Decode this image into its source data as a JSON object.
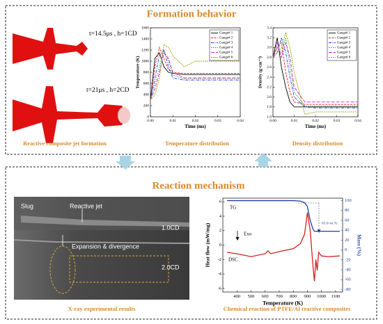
{
  "formation": {
    "title": "Formation behavior",
    "jet_labels": [
      "t=14.5μs , h=1CD",
      "t=21μs , h=2CD"
    ],
    "captions": [
      "Reactive composite jet formation",
      "Temperature distribution",
      "Density distribution"
    ],
    "charts": [
      {
        "type": "line",
        "y_label": "Temperature (K)",
        "x_label": "Time (ms)",
        "x": [
          0,
          0.002,
          0.004,
          0.006,
          0.008,
          0.01,
          0.015,
          0.02,
          0.03,
          0.04
        ],
        "xlim": [
          0,
          0.04
        ],
        "xticks": [
          {
            "value": 0,
            "label": "0.00"
          },
          {
            "value": 0.01,
            "label": "0.01"
          },
          {
            "value": 0.02,
            "label": "0.02"
          },
          {
            "value": 0.03,
            "label": "0.03"
          },
          {
            "value": 0.04,
            "label": "0.04"
          }
        ],
        "ylim": [
          0,
          1600
        ],
        "yticks": [
          0,
          200,
          400,
          600,
          800,
          1000,
          1200,
          1400,
          1600
        ],
        "legend": "upper right",
        "series": [
          {
            "name": "Gauge# 1",
            "color": "#000000",
            "values": [
              300,
              1050,
              1150,
              900,
              800,
              780,
              760,
              760,
              760,
              760
            ]
          },
          {
            "name": "Gauge# 2",
            "color": "#e02020",
            "values": [
              300,
              900,
              1250,
              1050,
              850,
              800,
              780,
              780,
              780,
              780
            ]
          },
          {
            "name": "Gauge# 3",
            "color": "#2030e0",
            "values": [
              300,
              700,
              1100,
              1200,
              900,
              700,
              660,
              660,
              660,
              660
            ]
          },
          {
            "name": "Gauge# 4",
            "color": "#20a040",
            "values": [
              300,
              600,
              900,
              1200,
              1000,
              750,
              680,
              680,
              680,
              680
            ]
          },
          {
            "name": "Gauge# 5",
            "color": "#d020d0",
            "values": [
              300,
              500,
              800,
              1150,
              1050,
              800,
              700,
              700,
              700,
              700
            ]
          },
          {
            "name": "Gauge# 6",
            "color": "#a0a000",
            "values": [
              300,
              400,
              700,
              1300,
              1250,
              1100,
              900,
              1000,
              1000,
              1000
            ]
          }
        ]
      },
      {
        "type": "line",
        "y_label": "Density (g·cm⁻³)",
        "x_label": "Time (ms)",
        "x": [
          0,
          0.002,
          0.004,
          0.006,
          0.008,
          0.01,
          0.015,
          0.02,
          0.03,
          0.04
        ],
        "xlim": [
          0,
          0.04
        ],
        "xticks": [
          {
            "value": 0,
            "label": "0.00"
          },
          {
            "value": 0.01,
            "label": "0.01"
          },
          {
            "value": 0.02,
            "label": "0.02"
          },
          {
            "value": 0.03,
            "label": "0.03"
          },
          {
            "value": 0.04,
            "label": "0.04"
          }
        ],
        "ylim": [
          1.6,
          3.4
        ],
        "yticks": [
          1.6,
          1.8,
          {
            "value": 2,
            "label": "2.0"
          },
          2.2,
          2.4,
          2.6,
          2.8,
          {
            "value": 3,
            "label": "3.0"
          },
          3.2,
          3.4
        ],
        "legend": "upper right",
        "series": [
          {
            "name": "Gauge# 1",
            "color": "#000000",
            "values": [
              2.8,
              3.2,
              2.6,
              2.2,
              1.9,
              1.8,
              1.8,
              1.8,
              1.8,
              1.8
            ]
          },
          {
            "name": "Gauge# 2",
            "color": "#e02020",
            "values": [
              2.8,
              3.0,
              3.1,
              2.5,
              2.1,
              1.9,
              1.85,
              1.85,
              1.85,
              1.85
            ]
          },
          {
            "name": "Gauge# 3",
            "color": "#2030e0",
            "values": [
              2.8,
              2.9,
              3.2,
              2.9,
              2.4,
              2.0,
              1.8,
              1.78,
              1.78,
              1.78
            ]
          },
          {
            "name": "Gauge# 4",
            "color": "#20a040",
            "values": [
              2.8,
              3.0,
              2.9,
              3.2,
              2.6,
              2.1,
              1.82,
              1.82,
              1.82,
              1.82
            ]
          },
          {
            "name": "Gauge# 5",
            "color": "#d020d0",
            "values": [
              2.8,
              3.1,
              2.8,
              3.1,
              2.8,
              2.2,
              1.9,
              1.9,
              1.9,
              1.9
            ]
          },
          {
            "name": "Gauge# 6",
            "color": "#a0a000",
            "values": [
              2.8,
              2.9,
              3.0,
              3.3,
              3.0,
              2.5,
              1.65,
              1.7,
              1.7,
              1.7
            ]
          }
        ]
      }
    ]
  },
  "reaction": {
    "title": "Reaction mechanism",
    "xray_labels": [
      "Slug",
      "Reactive jet",
      "1.0CD",
      "Expansion & divergence",
      "2.0CD"
    ],
    "captions": [
      "X-ray experimental results",
      "Chemical reaction of PTFE/Al reactive composites"
    ],
    "chart": {
      "type": "line",
      "y_label": "Heat flow (mW/mg)",
      "y2_label": "Mass (%)",
      "x_label": "Temperature (K)",
      "annotations": [
        "TG",
        "Exo",
        "DSC",
        "61.6 wt.%"
      ],
      "x": [
        330,
        400,
        500,
        600,
        620,
        640,
        700,
        800,
        850,
        880,
        900,
        920,
        940,
        950,
        960,
        970,
        980,
        1000,
        1050,
        1130
      ],
      "xlim": [
        300,
        1150
      ],
      "xticks": [
        400,
        500,
        600,
        700,
        800,
        900,
        1000,
        1100
      ],
      "ylim": [
        -6.5,
        6.5
      ],
      "yticks": [
        -6,
        -4,
        -2,
        0,
        2,
        4,
        6
      ],
      "y2lim": [
        -85,
        105
      ],
      "y2ticks": [
        -80,
        -60,
        -40,
        -20,
        0,
        20,
        40,
        60,
        80,
        100
      ],
      "series": [
        {
          "name": "TG",
          "color": "#1f3fa0",
          "axis": "y2",
          "values": [
            100,
            100,
            100,
            100,
            100,
            100,
            100,
            100,
            99,
            96,
            88,
            60,
            42,
            38,
            38,
            38,
            38,
            38,
            38,
            38
          ]
        },
        {
          "name": "DSC",
          "color": "#d02020",
          "values": [
            -1,
            -1.2,
            -1.6,
            -1.2,
            -0.8,
            -1.2,
            -0.9,
            -0.5,
            0.2,
            1.5,
            4.5,
            2,
            -3,
            -5,
            -2,
            -3.5,
            -1,
            -1.5,
            -1.6,
            -1.5
          ]
        }
      ]
    }
  }
}
